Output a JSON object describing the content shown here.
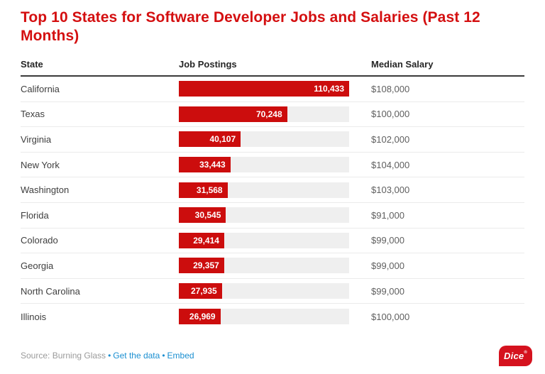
{
  "title": "Top 10 States for Software Developer Jobs and Salaries (Past 12 Months)",
  "columns": {
    "state": "State",
    "postings": "Job Postings",
    "salary": "Median Salary"
  },
  "rows": [
    {
      "state": "California",
      "postings": 110433,
      "postings_label": "110,433",
      "salary": "$108,000"
    },
    {
      "state": "Texas",
      "postings": 70248,
      "postings_label": "70,248",
      "salary": "$100,000"
    },
    {
      "state": "Virginia",
      "postings": 40107,
      "postings_label": "40,107",
      "salary": "$102,000"
    },
    {
      "state": "New York",
      "postings": 33443,
      "postings_label": "33,443",
      "salary": "$104,000"
    },
    {
      "state": "Washington",
      "postings": 31568,
      "postings_label": "31,568",
      "salary": "$103,000"
    },
    {
      "state": "Florida",
      "postings": 30545,
      "postings_label": "30,545",
      "salary": "$91,000"
    },
    {
      "state": "Colorado",
      "postings": 29414,
      "postings_label": "29,414",
      "salary": "$99,000"
    },
    {
      "state": "Georgia",
      "postings": 29357,
      "postings_label": "29,357",
      "salary": "$99,000"
    },
    {
      "state": "North Carolina",
      "postings": 27935,
      "postings_label": "27,935",
      "salary": "$99,000"
    },
    {
      "state": "Illinois",
      "postings": 26969,
      "postings_label": "26,969",
      "salary": "$100,000"
    }
  ],
  "footer": {
    "source": "Source: Burning Glass",
    "bullet": "•",
    "link_get_data": "Get the data",
    "link_embed": "Embed"
  },
  "logo": {
    "text": "Dice",
    "mark": "®"
  },
  "colors": {
    "title_red": "#d40f10",
    "bar_red": "#cc0d0d",
    "bar_track": "#efefef",
    "link_blue": "#1a8fd1",
    "footer_gray": "#9b9b9b"
  },
  "chart_data": {
    "type": "bar",
    "orientation": "horizontal",
    "title": "Top 10 States for Software Developer Jobs and Salaries (Past 12 Months)",
    "categories": [
      "California",
      "Texas",
      "Virginia",
      "New York",
      "Washington",
      "Florida",
      "Colorado",
      "Georgia",
      "North Carolina",
      "Illinois"
    ],
    "series": [
      {
        "name": "Job Postings",
        "values": [
          110433,
          70248,
          40107,
          33443,
          31568,
          30545,
          29414,
          29357,
          27935,
          26969
        ]
      },
      {
        "name": "Median Salary",
        "values": [
          108000,
          100000,
          102000,
          104000,
          103000,
          91000,
          99000,
          99000,
          99000,
          100000
        ]
      }
    ],
    "xlabel": "State",
    "bar_axis_range": [
      0,
      110433
    ],
    "grid": false,
    "legend_position": "none",
    "data_labels": true,
    "source": "Burning Glass"
  }
}
